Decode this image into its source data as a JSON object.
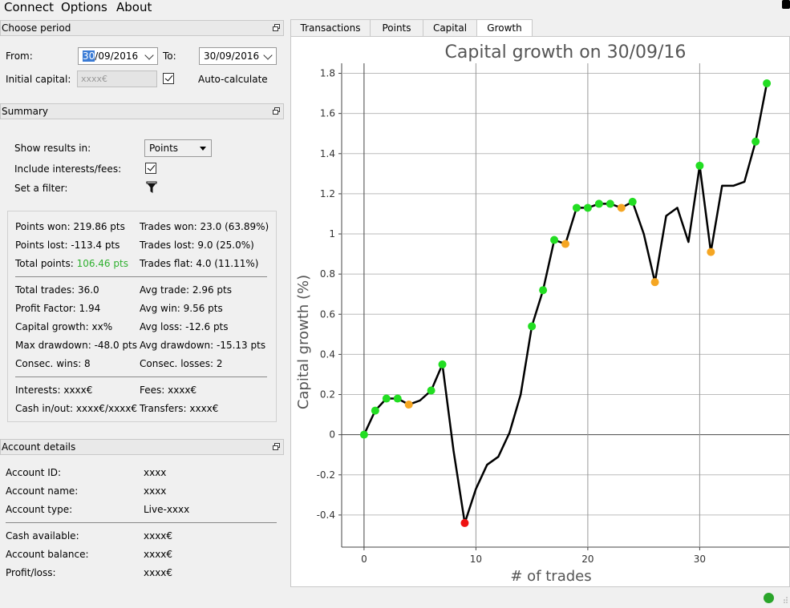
{
  "menu": {
    "items": [
      "Connect",
      "Options",
      "About"
    ]
  },
  "period_panel": {
    "title": "Choose period",
    "from_label": "From:",
    "from_day_selected": "30",
    "from_rest": "/09/2016",
    "to_label": "To:",
    "to_value": "30/09/2016",
    "initial_capital_label": "Initial capital:",
    "initial_capital_placeholder": "xxxx€",
    "auto_calculate_label": "Auto-calculate",
    "auto_calculate_checked": true
  },
  "summary_panel": {
    "title": "Summary",
    "show_results_label": "Show results in:",
    "show_results_value": "Points",
    "include_interests_label": "Include interests/fees:",
    "include_interests_checked": true,
    "filter_label": "Set a filter:",
    "filter_icon": "funnel-icon",
    "stats_left": [
      "Points won: 219.86 pts",
      "Points lost: -113.4 pts",
      "Total points: "
    ],
    "total_points_value": "106.46 pts",
    "stats_right": [
      "Trades won: 23.0 (63.89%)",
      "Trades lost: 9.0 (25.0%)",
      "Trades flat: 4.0 (11.11%)"
    ],
    "stats2_left": [
      "Total trades: 36.0",
      "Profit Factor: 1.94",
      "Capital growth: xx%",
      "Max drawdown: -48.0 pts",
      "Consec. wins: 8"
    ],
    "stats2_right": [
      "Avg trade: 2.96 pts",
      "Avg win: 9.56 pts",
      "Avg loss: -12.6 pts",
      "Avg drawdown: -15.13 pts",
      "Consec. losses: 2"
    ],
    "stats3_left": [
      "Interests: xxxx€",
      "Cash in/out: xxxx€/xxxx€"
    ],
    "stats3_right": [
      "Fees: xxxx€",
      "Transfers: xxxx€"
    ],
    "colors": {
      "positive": "#2fb02f"
    }
  },
  "account_panel": {
    "title": "Account details",
    "rows_a": [
      {
        "label": "Account ID:",
        "value": "xxxx"
      },
      {
        "label": "Account name:",
        "value": "xxxx"
      },
      {
        "label": "Account type:",
        "value": "Live-xxxx"
      }
    ],
    "rows_b": [
      {
        "label": "Cash available:",
        "value": "xxxx€"
      },
      {
        "label": "Account balance:",
        "value": "xxxx€"
      },
      {
        "label": "Profit/loss:",
        "value": "xxxx€"
      }
    ]
  },
  "tabs": [
    "Transactions",
    "Points",
    "Capital",
    "Growth"
  ],
  "active_tab": "Growth",
  "status": {
    "connection_color": "#2aa52a"
  },
  "chart_data": {
    "type": "line",
    "title": "Capital growth on 30/09/16",
    "xlabel": "# of trades",
    "ylabel": "Capital growth (%)",
    "xlim": [
      -2,
      38
    ],
    "ylim": [
      -0.56,
      1.85
    ],
    "xticks": [
      0,
      10,
      20,
      30
    ],
    "yticks": [
      -0.4,
      -0.2,
      0,
      0.2,
      0.4,
      0.6,
      0.8,
      1,
      1.2,
      1.4,
      1.6,
      1.8
    ],
    "grid": true,
    "line_color": "#000000",
    "marker_colors": {
      "win": "#22dd22",
      "flat": "#f5a623",
      "max_loss": "#ee1111"
    },
    "series": [
      {
        "x": [
          0,
          1,
          2,
          3,
          4,
          5,
          6,
          7,
          8,
          9,
          10,
          11,
          12,
          13,
          14,
          15,
          16,
          17,
          18,
          19,
          20,
          21,
          22,
          23,
          24,
          25,
          26,
          27,
          28,
          29,
          30,
          31,
          32,
          33,
          34,
          35,
          36
        ],
        "y": [
          0,
          0.12,
          0.18,
          0.18,
          0.15,
          0.17,
          0.22,
          0.35,
          -0.08,
          -0.44,
          -0.27,
          -0.15,
          -0.11,
          0.01,
          0.2,
          0.54,
          0.72,
          0.97,
          0.95,
          1.13,
          1.13,
          1.15,
          1.15,
          1.13,
          1.16,
          1.0,
          0.76,
          1.09,
          1.13,
          0.96,
          1.34,
          0.91,
          1.24,
          1.24,
          1.26,
          1.46,
          1.75
        ],
        "markers": [
          "win",
          "win",
          "win",
          "win",
          "flat",
          "none",
          "win",
          "win",
          "none",
          "max_loss",
          "none",
          "none",
          "none",
          "none",
          "none",
          "win",
          "win",
          "win",
          "flat",
          "win",
          "win",
          "win",
          "win",
          "flat",
          "win",
          "none",
          "flat",
          "none",
          "none",
          "none",
          "win",
          "flat",
          "none",
          "none",
          "none",
          "win",
          "win"
        ]
      }
    ]
  }
}
